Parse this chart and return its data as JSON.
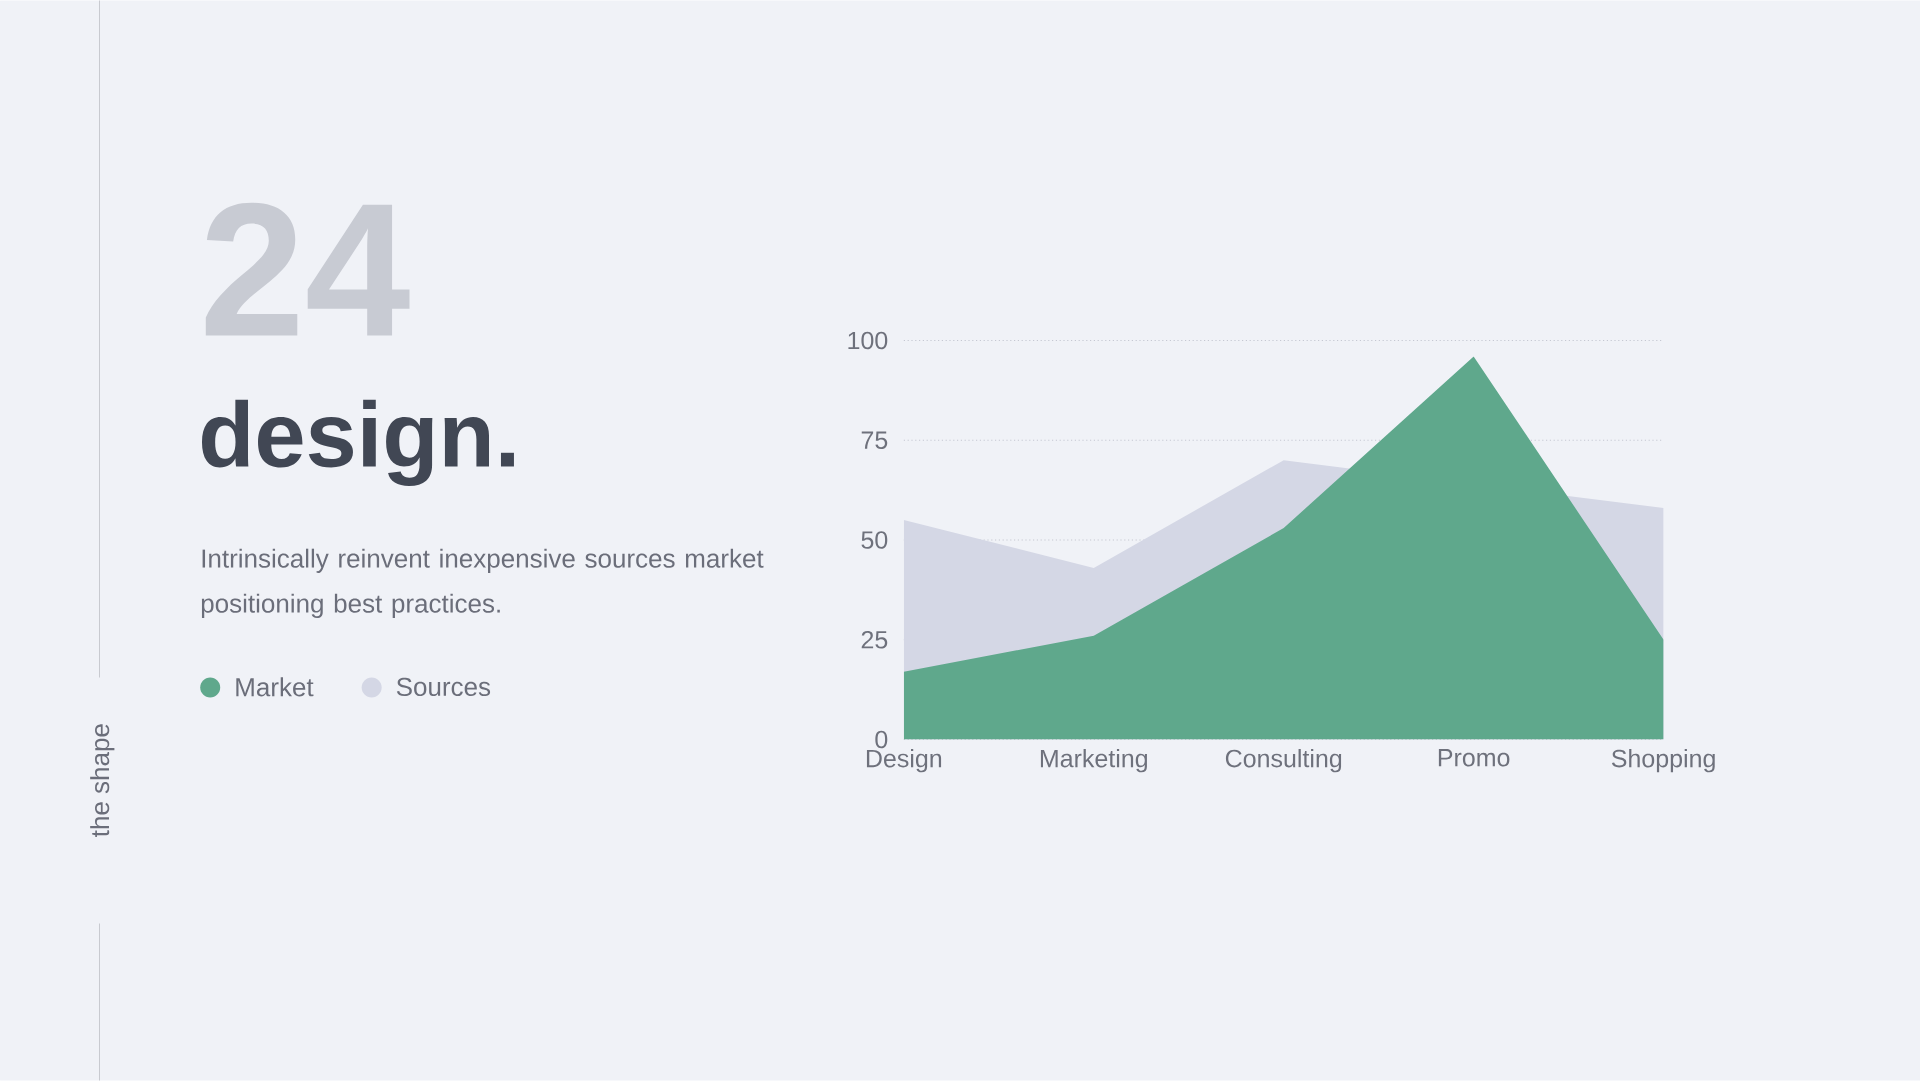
{
  "chart_data": {
    "type": "area",
    "title": "design.",
    "subtitle": "Intrinsically reinvent inexpensive sources market positioning best practices.",
    "annotations": [
      "24",
      "the shape"
    ],
    "categories": [
      "Design",
      "Marketing",
      "Consulting",
      "Promo",
      "Shopping"
    ],
    "series": [
      {
        "name": "Market",
        "color": "#5fa88c",
        "values": [
          17,
          26,
          53,
          96,
          25
        ]
      },
      {
        "name": "Sources",
        "color": "#d4d7e5",
        "values": [
          55,
          43,
          70,
          null,
          58
        ]
      }
    ],
    "ylim": [
      0,
      100
    ],
    "yticks": [
      0,
      25,
      50,
      75,
      100
    ],
    "grid": "y",
    "legend": "left"
  }
}
